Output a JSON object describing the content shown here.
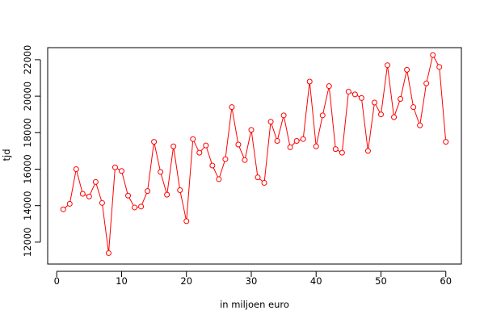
{
  "chart_data": {
    "type": "line",
    "markers": "open-circle",
    "xlabel": "in miljoen euro",
    "ylabel": "tjd",
    "xlim": [
      -1.4,
      62.4
    ],
    "ylim": [
      10800,
      22660
    ],
    "xticks": [
      0,
      10,
      20,
      30,
      40,
      50,
      60
    ],
    "yticks": [
      12000,
      14000,
      16000,
      18000,
      20000,
      22000
    ],
    "grid": false,
    "legend": "none",
    "series": [
      {
        "color": "#ff0000",
        "x": [
          1,
          2,
          3,
          4,
          5,
          6,
          7,
          8,
          9,
          10,
          11,
          12,
          13,
          14,
          15,
          16,
          17,
          18,
          19,
          20,
          21,
          22,
          23,
          24,
          25,
          26,
          27,
          28,
          29,
          30,
          31,
          32,
          33,
          34,
          35,
          36,
          37,
          38,
          39,
          40,
          41,
          42,
          43,
          44,
          45,
          46,
          47,
          48,
          49,
          50,
          51,
          52,
          53,
          54,
          55,
          56,
          57,
          58,
          59,
          60
        ],
        "values": [
          13800,
          14100,
          16000,
          14650,
          14500,
          15300,
          14150,
          11400,
          16100,
          15900,
          14550,
          13900,
          13950,
          14800,
          17500,
          15850,
          14600,
          17250,
          14850,
          13150,
          17650,
          16900,
          17300,
          16200,
          15450,
          16550,
          19400,
          17350,
          16500,
          18150,
          15550,
          15250,
          18600,
          17550,
          18950,
          17200,
          17550,
          17650,
          20800,
          17250,
          18950,
          20550,
          17100,
          16900,
          20250,
          20100,
          19900,
          17000,
          19650,
          19000,
          21700,
          18850,
          19850,
          21450,
          19400,
          18400,
          20700,
          22250,
          21600,
          17500
        ]
      }
    ]
  }
}
